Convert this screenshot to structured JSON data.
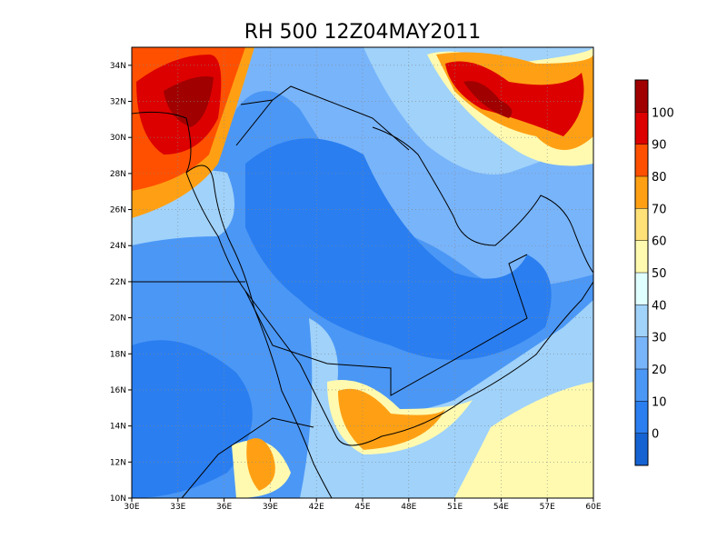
{
  "title": "RH 500 12Z04MAY2011",
  "map": {
    "xlim": [
      30,
      60
    ],
    "ylim": [
      10,
      35
    ],
    "xticks": [
      {
        "value": 30,
        "label": "30E"
      },
      {
        "value": 33,
        "label": "33E"
      },
      {
        "value": 36,
        "label": "36E"
      },
      {
        "value": 39,
        "label": "39E"
      },
      {
        "value": 42,
        "label": "42E"
      },
      {
        "value": 45,
        "label": "45E"
      },
      {
        "value": 48,
        "label": "48E"
      },
      {
        "value": 51,
        "label": "51E"
      },
      {
        "value": 54,
        "label": "54E"
      },
      {
        "value": 57,
        "label": "57E"
      },
      {
        "value": 60,
        "label": "60E"
      }
    ],
    "yticks": [
      {
        "value": 10,
        "label": "10N"
      },
      {
        "value": 12,
        "label": "12N"
      },
      {
        "value": 14,
        "label": "14N"
      },
      {
        "value": 16,
        "label": "16N"
      },
      {
        "value": 18,
        "label": "18N"
      },
      {
        "value": 20,
        "label": "20N"
      },
      {
        "value": 22,
        "label": "22N"
      },
      {
        "value": 24,
        "label": "24N"
      },
      {
        "value": 26,
        "label": "26N"
      },
      {
        "value": 28,
        "label": "28N"
      },
      {
        "value": 30,
        "label": "30N"
      },
      {
        "value": 32,
        "label": "32N"
      },
      {
        "value": 34,
        "label": "34N"
      }
    ]
  },
  "colorbar": {
    "levels": [
      0,
      10,
      20,
      30,
      40,
      50,
      60,
      70,
      80,
      90,
      100
    ],
    "colors": [
      "#1563d3",
      "#2a7ef0",
      "#4b97f5",
      "#78b4fa",
      "#a0d2fa",
      "#e0ffff",
      "#fffab0",
      "#ffe178",
      "#ffa014",
      "#ff5000",
      "#dc0000",
      "#a00000"
    ]
  }
}
